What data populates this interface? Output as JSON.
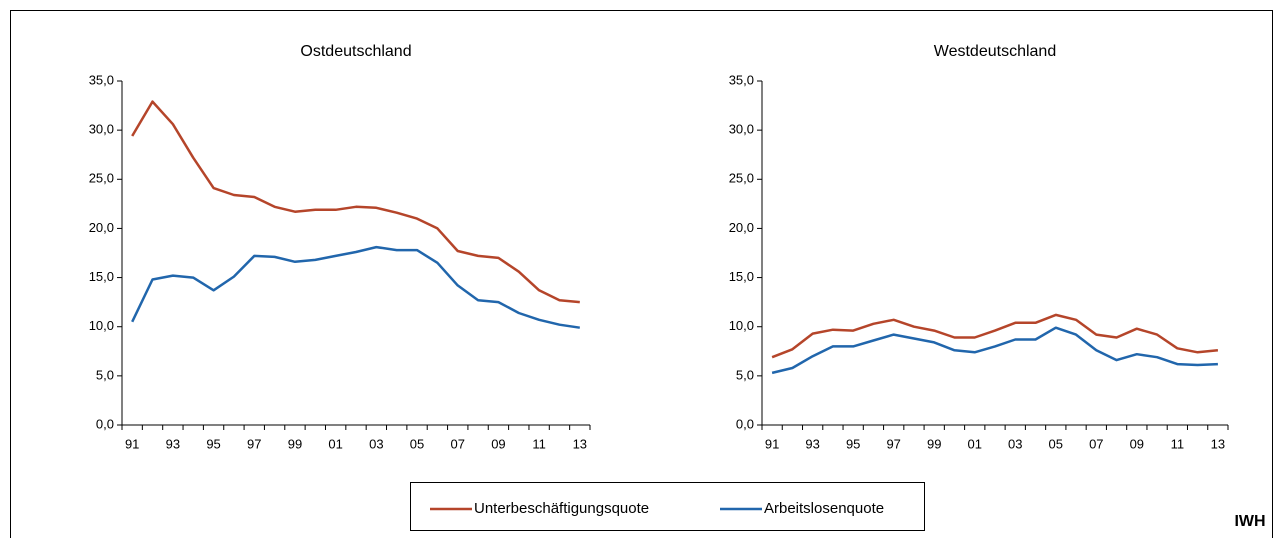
{
  "chart_data": [
    {
      "type": "line",
      "title": "Ostdeutschland",
      "categories": [
        "91",
        null,
        "93",
        null,
        "95",
        null,
        "97",
        null,
        "99",
        null,
        "01",
        null,
        "03",
        null,
        "05",
        null,
        "07",
        null,
        "09",
        null,
        "11",
        null,
        "13"
      ],
      "series": [
        {
          "name": "Unterbeschäftigungsquote",
          "color": "#b5452a",
          "values": [
            29.4,
            32.9,
            30.6,
            27.2,
            24.1,
            23.4,
            23.2,
            22.2,
            21.7,
            21.9,
            21.9,
            22.2,
            22.1,
            21.6,
            21.0,
            20.0,
            17.7,
            17.2,
            17.0,
            15.6,
            13.7,
            12.7,
            12.5
          ]
        },
        {
          "name": "Arbeitslosenquote",
          "color": "#2166ac",
          "values": [
            10.5,
            14.8,
            15.2,
            15.0,
            13.7,
            15.1,
            17.2,
            17.1,
            16.6,
            16.8,
            17.2,
            17.6,
            18.1,
            17.8,
            17.8,
            16.5,
            14.2,
            12.7,
            12.5,
            11.4,
            10.7,
            10.2,
            9.9
          ]
        }
      ],
      "ylim": [
        0,
        35
      ],
      "yticks": [
        {
          "value": 0,
          "label": "0,0"
        },
        {
          "value": 5,
          "label": "5,0"
        },
        {
          "value": 10,
          "label": "10,0"
        },
        {
          "value": 15,
          "label": "15,0"
        },
        {
          "value": 20,
          "label": "20,0"
        },
        {
          "value": 25,
          "label": "25,0"
        },
        {
          "value": 30,
          "label": "30,0"
        },
        {
          "value": 35,
          "label": "35,0"
        }
      ]
    },
    {
      "type": "line",
      "title": "Westdeutschland",
      "categories": [
        "91",
        null,
        "93",
        null,
        "95",
        null,
        "97",
        null,
        "99",
        null,
        "01",
        null,
        "03",
        null,
        "05",
        null,
        "07",
        null,
        "09",
        null,
        "11",
        null,
        "13"
      ],
      "series": [
        {
          "color": "#b5452a",
          "values": [
            6.9,
            7.7,
            9.3,
            9.7,
            9.6,
            10.3,
            10.7,
            10.0,
            9.6,
            8.9,
            8.9,
            9.6,
            10.4,
            10.4,
            11.2,
            10.7,
            9.2,
            8.9,
            9.8,
            9.2,
            7.8,
            7.4,
            7.6
          ]
        },
        {
          "color": "#2166ac",
          "values": [
            5.3,
            5.8,
            7.0,
            8.0,
            8.0,
            8.6,
            9.2,
            8.8,
            8.4,
            7.6,
            7.4,
            8.0,
            8.7,
            8.7,
            9.9,
            9.2,
            7.6,
            6.6,
            7.2,
            6.9,
            6.2,
            6.1,
            6.2
          ]
        }
      ],
      "ylim": [
        0,
        35
      ],
      "yticks": [
        {
          "value": 0,
          "label": "0,0"
        },
        {
          "value": 5,
          "label": "5,0"
        },
        {
          "value": 10,
          "label": "10,0"
        },
        {
          "value": 15,
          "label": "15,0"
        },
        {
          "value": 20,
          "label": "20,0"
        },
        {
          "value": 25,
          "label": "25,0"
        },
        {
          "value": 30,
          "label": "30,0"
        },
        {
          "value": 35,
          "label": "35,0"
        }
      ]
    }
  ],
  "source_label": "IWH"
}
